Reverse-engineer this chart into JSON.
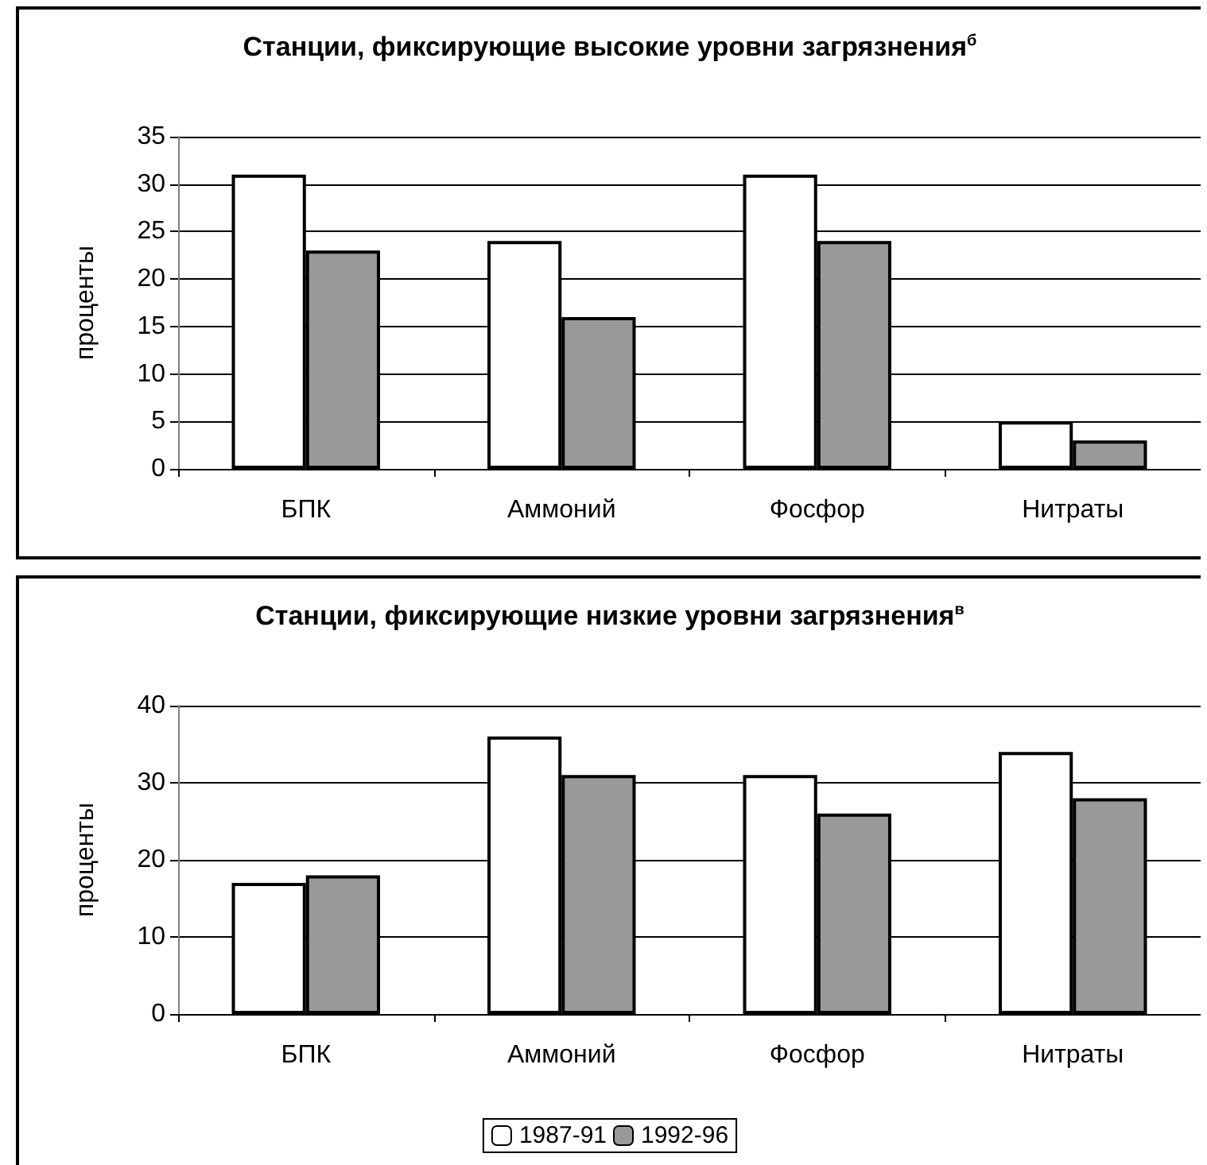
{
  "chart_data": [
    {
      "type": "bar",
      "title": "Станции, фиксирующие высокие уровни загрязнения$^{б}$",
      "ylabel": "проценты",
      "categories": [
        "БПК",
        "Аммоний",
        "Фосфор",
        "Нитраты"
      ],
      "series": [
        {
          "color": "#ffffff",
          "values": [
            31,
            24,
            31,
            5
          ]
        },
        {
          "color": "#999999",
          "values": [
            23,
            16,
            24,
            3
          ]
        }
      ],
      "ylim": [
        0,
        35
      ],
      "yticks": [
        0,
        5,
        10,
        15,
        20,
        25,
        30,
        35
      ],
      "grid": "y",
      "legend": false
    },
    {
      "type": "bar",
      "title": "Станции, фиксирующие низкие уровни загрязнения$^{в}$",
      "ylabel": "проценты",
      "categories": [
        "БПК",
        "Аммоний",
        "Фосфор",
        "Нитраты"
      ],
      "series": [
        {
          "name": "1987-91",
          "color": "#ffffff",
          "values": [
            17,
            36,
            31,
            34
          ]
        },
        {
          "name": "1992-96",
          "color": "#999999",
          "values": [
            18,
            31,
            26,
            28
          ]
        }
      ],
      "ylim": [
        0,
        40
      ],
      "yticks": [
        0,
        10,
        20,
        30,
        40
      ],
      "grid": "y",
      "legend": "bottom"
    }
  ]
}
